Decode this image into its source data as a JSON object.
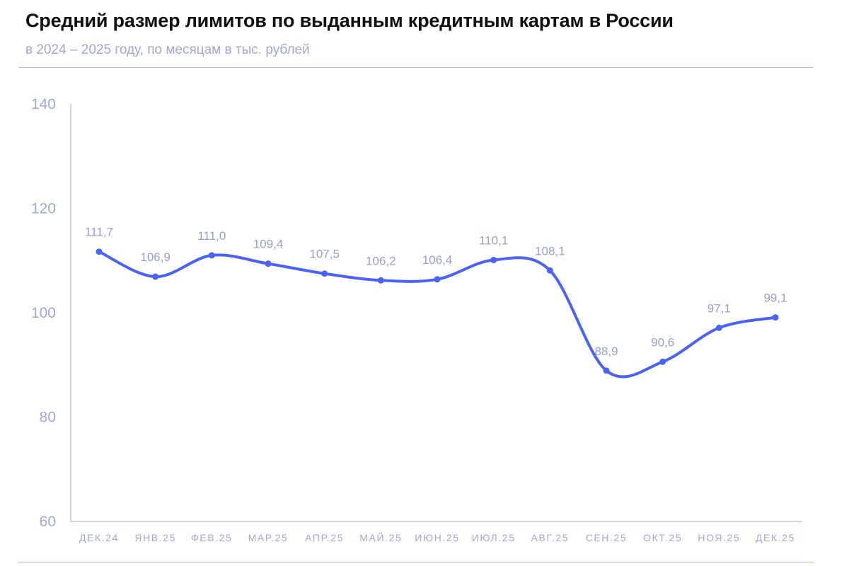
{
  "header": {
    "title": "Средний размер лимитов по выданным кредитным картам в России",
    "subtitle": "в 2024 – 2025 году, по месяцам в тыс. рублей"
  },
  "colors": {
    "line": "#4a63f5",
    "axis": "#b3b6e0",
    "text_muted": "#a3a6d8"
  },
  "chart_data": {
    "type": "line",
    "categories": [
      "ДЕК.24",
      "ЯНВ.25",
      "ФЕВ.25",
      "МАР.25",
      "АПР.25",
      "МАЙ.25",
      "ИЮН.25",
      "ИЮЛ.25",
      "АВГ.25",
      "СЕН.25",
      "ОКТ.25",
      "НОЯ.25",
      "ДЕК.25"
    ],
    "series": [
      {
        "values": [
          111.7,
          106.9,
          111.0,
          109.4,
          107.5,
          106.2,
          106.4,
          110.1,
          108.1,
          88.9,
          90.6,
          97.1,
          99.1
        ],
        "labels": [
          "111,7",
          "106,9",
          "111,0",
          "109,4",
          "107,5",
          "106,2",
          "106,4",
          "110,1",
          "108,1",
          "88,9",
          "90,6",
          "97,1",
          "99,1"
        ]
      }
    ],
    "ylim": [
      60,
      140
    ],
    "yticks": [
      60,
      80,
      100,
      120,
      140
    ],
    "grid": false,
    "legend": "none"
  }
}
